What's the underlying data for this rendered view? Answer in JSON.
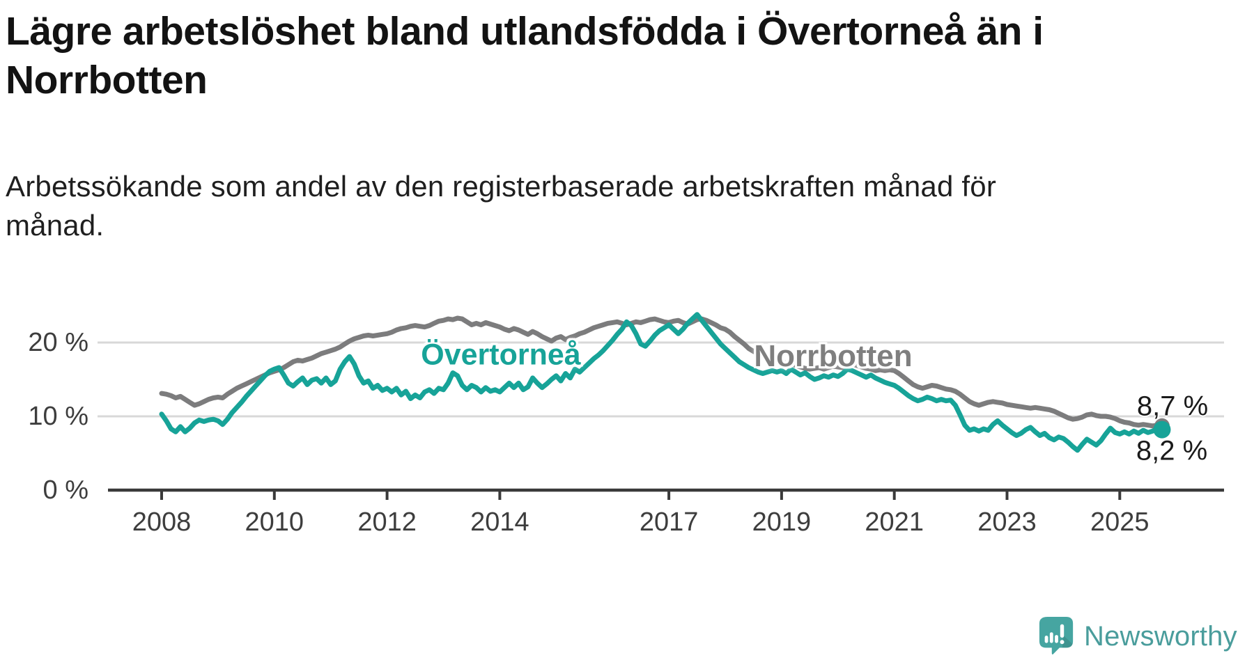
{
  "header": {
    "title": "Lägre arbetslöshet bland utlandsfödda i Övertorneå än i\nNorrbotten",
    "subtitle": "Arbetssökande som andel av den registerbaserade arbetskraften månad för\nmånad."
  },
  "footer": {
    "logo_text": "Newsworthy"
  },
  "colors": {
    "overtornea": "#17a398",
    "norrbotten": "#7c7c7d",
    "gridline": "#d8d8d8",
    "axis": "#3a3a3a",
    "logo_teal": "#46a5a1",
    "logo_text": "#4a9d9c"
  },
  "chart_data": {
    "type": "line",
    "title": "Lägre arbetslöshet bland utlandsfödda i Övertorneå än i Norrbotten",
    "subtitle": "Arbetssökande som andel av den registerbaserade arbetskraften månad för månad.",
    "unit": "%",
    "frequency": "monthly",
    "x_start": {
      "year": 2008,
      "month": 1
    },
    "x_end": {
      "year": 2025,
      "month": 10
    },
    "ylim": [
      0,
      29
    ],
    "grid": "horizontal",
    "legend_position": "inline",
    "yticks": [
      {
        "value": 0,
        "label": "0 %"
      },
      {
        "value": 10,
        "label": "10 %"
      },
      {
        "value": 20,
        "label": "20 %"
      }
    ],
    "xticks": [
      2008,
      2010,
      2012,
      2014,
      2017,
      2019,
      2021,
      2023,
      2025
    ],
    "series": [
      {
        "name": "Norrbotten",
        "color": "#7c7c7d",
        "end_label": "8,7 %",
        "end_value": 8.7,
        "values": [
          13.1,
          13.0,
          12.8,
          12.5,
          12.7,
          12.3,
          11.9,
          11.5,
          11.7,
          12.0,
          12.3,
          12.5,
          12.6,
          12.5,
          13.0,
          13.4,
          13.8,
          14.1,
          14.4,
          14.7,
          15.0,
          15.3,
          15.6,
          15.9,
          16.1,
          16.3,
          16.6,
          17.0,
          17.4,
          17.6,
          17.5,
          17.7,
          17.9,
          18.2,
          18.5,
          18.7,
          18.9,
          19.1,
          19.4,
          19.8,
          20.2,
          20.5,
          20.7,
          20.9,
          21.0,
          20.9,
          21.0,
          21.1,
          21.2,
          21.4,
          21.7,
          21.9,
          22.0,
          22.2,
          22.3,
          22.2,
          22.1,
          22.3,
          22.6,
          22.9,
          23.0,
          23.2,
          23.1,
          23.3,
          23.2,
          22.8,
          22.4,
          22.6,
          22.4,
          22.7,
          22.5,
          22.3,
          22.1,
          21.8,
          21.6,
          21.9,
          21.7,
          21.4,
          21.1,
          21.5,
          21.2,
          20.8,
          20.5,
          20.2,
          20.6,
          20.8,
          20.4,
          20.7,
          20.9,
          21.2,
          21.4,
          21.7,
          22.0,
          22.2,
          22.4,
          22.6,
          22.7,
          22.8,
          22.6,
          22.4,
          22.6,
          22.8,
          22.7,
          22.9,
          23.1,
          23.2,
          23.0,
          22.8,
          22.7,
          22.9,
          23.0,
          22.7,
          22.5,
          22.8,
          23.1,
          23.2,
          23.0,
          22.7,
          22.4,
          22.0,
          21.8,
          21.4,
          20.8,
          20.3,
          19.8,
          19.2,
          18.8,
          18.5,
          18.2,
          18.0,
          17.8,
          17.6,
          17.4,
          17.2,
          17.1,
          16.9,
          16.7,
          16.5,
          16.4,
          16.5,
          16.6,
          16.4,
          16.6,
          16.8,
          16.7,
          16.6,
          16.9,
          17.1,
          16.9,
          16.7,
          16.5,
          16.4,
          16.2,
          16.3,
          16.2,
          16.3,
          16.2,
          15.8,
          15.3,
          14.8,
          14.3,
          14.0,
          13.8,
          14.0,
          14.2,
          14.1,
          13.9,
          13.7,
          13.6,
          13.4,
          13.0,
          12.5,
          12.0,
          11.7,
          11.5,
          11.7,
          11.9,
          12.0,
          11.9,
          11.8,
          11.6,
          11.5,
          11.4,
          11.3,
          11.2,
          11.1,
          11.2,
          11.1,
          11.0,
          10.9,
          10.7,
          10.4,
          10.1,
          9.8,
          9.6,
          9.7,
          9.9,
          10.2,
          10.3,
          10.1,
          10.0,
          10.0,
          9.9,
          9.7,
          9.4,
          9.2,
          9.1,
          8.9,
          8.8,
          8.9,
          8.8,
          8.7,
          8.8,
          8.7
        ]
      },
      {
        "name": "Övertorneå",
        "color": "#17a398",
        "end_label": "8,2 %",
        "end_value": 8.2,
        "values": [
          10.3,
          9.4,
          8.3,
          7.9,
          8.6,
          7.9,
          8.4,
          9.1,
          9.5,
          9.3,
          9.5,
          9.6,
          9.4,
          8.9,
          9.6,
          10.5,
          11.2,
          11.9,
          12.7,
          13.4,
          14.1,
          14.8,
          15.5,
          16.1,
          16.4,
          16.6,
          15.6,
          14.5,
          14.1,
          14.7,
          15.2,
          14.3,
          14.9,
          15.1,
          14.5,
          15.2,
          14.3,
          14.8,
          16.4,
          17.4,
          18.1,
          17.1,
          15.5,
          14.5,
          14.8,
          13.8,
          14.2,
          13.5,
          13.8,
          13.3,
          13.8,
          12.9,
          13.4,
          12.4,
          12.9,
          12.5,
          13.3,
          13.6,
          13.1,
          13.8,
          13.6,
          14.5,
          15.9,
          15.5,
          14.2,
          13.6,
          14.2,
          13.9,
          13.3,
          13.9,
          13.4,
          13.6,
          13.3,
          13.9,
          14.5,
          13.9,
          14.5,
          13.6,
          14.0,
          15.2,
          14.5,
          13.9,
          14.4,
          15.0,
          15.5,
          14.8,
          15.8,
          15.2,
          16.4,
          16.0,
          16.6,
          17.2,
          17.8,
          18.3,
          18.9,
          19.6,
          20.3,
          21.1,
          21.8,
          22.8,
          22.3,
          21.2,
          19.8,
          19.5,
          20.2,
          21.0,
          21.6,
          22.0,
          22.4,
          21.8,
          21.2,
          21.8,
          22.6,
          23.2,
          23.8,
          23.0,
          22.2,
          21.4,
          20.6,
          19.8,
          19.2,
          18.6,
          18.0,
          17.4,
          17.0,
          16.6,
          16.3,
          16.0,
          15.8,
          16.0,
          16.2,
          16.0,
          16.2,
          15.8,
          16.4,
          16.0,
          15.6,
          15.9,
          15.4,
          15.0,
          15.2,
          15.5,
          15.3,
          15.6,
          15.4,
          15.8,
          16.4,
          16.2,
          15.9,
          15.6,
          15.3,
          15.6,
          15.2,
          14.9,
          14.6,
          14.4,
          14.2,
          13.8,
          13.3,
          12.8,
          12.4,
          12.1,
          12.3,
          12.6,
          12.4,
          12.1,
          12.3,
          12.1,
          12.2,
          11.5,
          10.2,
          8.8,
          8.1,
          8.3,
          8.0,
          8.3,
          8.1,
          8.9,
          9.4,
          8.8,
          8.3,
          7.8,
          7.4,
          7.7,
          8.2,
          8.5,
          7.9,
          7.4,
          7.7,
          7.1,
          6.8,
          7.2,
          7.0,
          6.5,
          5.9,
          5.4,
          6.2,
          6.9,
          6.5,
          6.1,
          6.7,
          7.6,
          8.4,
          7.8,
          7.6,
          7.9,
          7.6,
          8.0,
          7.7,
          8.1,
          7.8,
          8.0,
          8.3,
          8.2
        ]
      }
    ]
  }
}
